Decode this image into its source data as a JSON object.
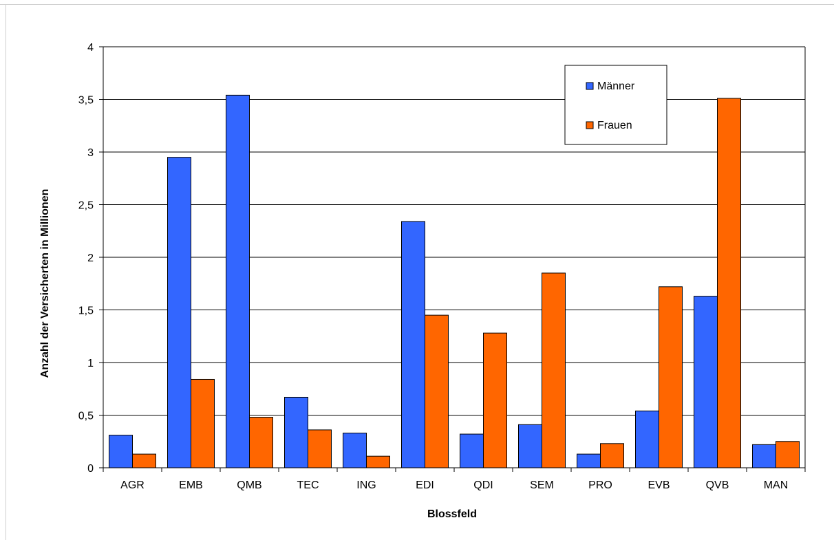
{
  "chart_data": {
    "type": "bar",
    "title": "",
    "xlabel": "Blossfeld",
    "ylabel": "Anzahl der Versicherten in Millionen",
    "categories": [
      "AGR",
      "EMB",
      "QMB",
      "TEC",
      "ING",
      "EDI",
      "QDI",
      "SEM",
      "PRO",
      "EVB",
      "QVB",
      "MAN"
    ],
    "series": [
      {
        "name": "Männer",
        "color": "#3366ff",
        "values": [
          0.31,
          2.95,
          3.54,
          0.67,
          0.33,
          2.34,
          0.32,
          0.41,
          0.13,
          0.54,
          1.63,
          0.22
        ]
      },
      {
        "name": "Frauen",
        "color": "#ff6600",
        "values": [
          0.13,
          0.84,
          0.48,
          0.36,
          0.11,
          1.45,
          1.28,
          1.85,
          0.23,
          1.72,
          3.51,
          0.25
        ]
      }
    ],
    "ylim": [
      0,
      4
    ],
    "yticks": [
      "0",
      "0,5",
      "1",
      "1,5",
      "2",
      "2,5",
      "3",
      "3,5",
      "4"
    ],
    "grid": true,
    "legend_position": "top-right"
  }
}
